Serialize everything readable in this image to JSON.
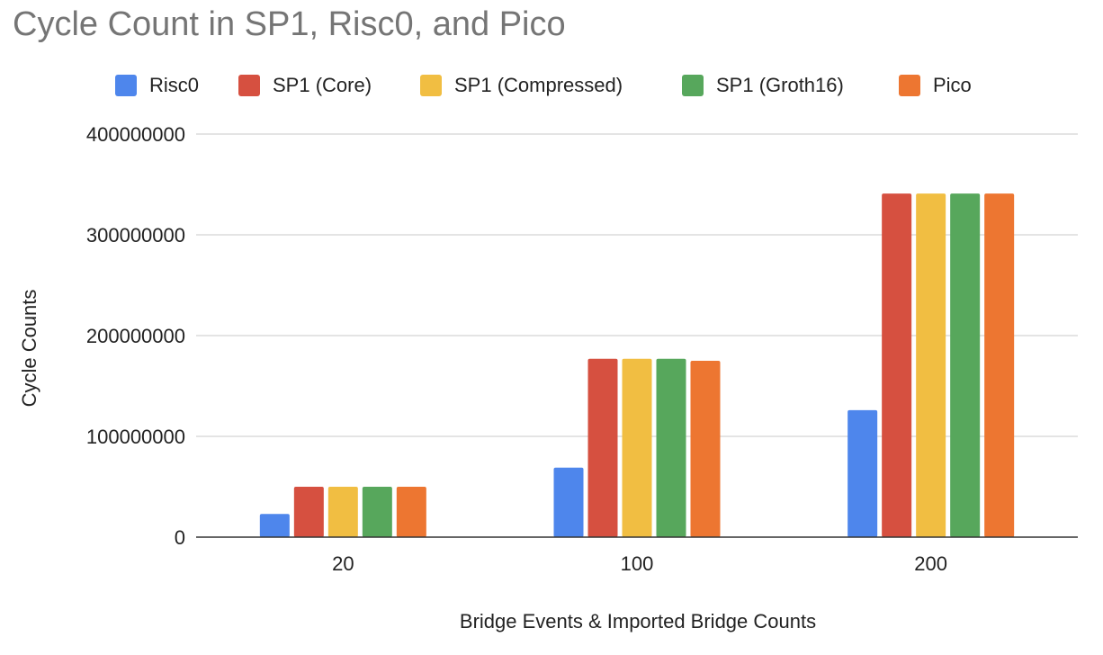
{
  "chart_data": {
    "type": "bar",
    "title": "Cycle Count in SP1, Risc0, and Pico",
    "xlabel": "Bridge Events & Imported Bridge Counts",
    "ylabel": "Cycle Counts",
    "categories": [
      "20",
      "100",
      "200"
    ],
    "ylim": [
      0,
      400000000
    ],
    "yticks": [
      0,
      100000000,
      200000000,
      300000000,
      400000000
    ],
    "ytick_labels": [
      "0",
      "100000000",
      "200000000",
      "300000000",
      "400000000"
    ],
    "grid": true,
    "legend_position": "top",
    "series": [
      {
        "name": "Risc0",
        "color": "#4e86ec",
        "values": [
          23000000,
          69000000,
          126000000
        ]
      },
      {
        "name": "SP1 (Core)",
        "color": "#d65040",
        "values": [
          50000000,
          177000000,
          341000000
        ]
      },
      {
        "name": "SP1 (Compressed)",
        "color": "#f1be42",
        "values": [
          50000000,
          177000000,
          341000000
        ]
      },
      {
        "name": "SP1 (Groth16)",
        "color": "#57a75c",
        "values": [
          50000000,
          177000000,
          341000000
        ]
      },
      {
        "name": "Pico",
        "color": "#ed7631",
        "values": [
          50000000,
          175000000,
          341000000
        ]
      }
    ]
  }
}
